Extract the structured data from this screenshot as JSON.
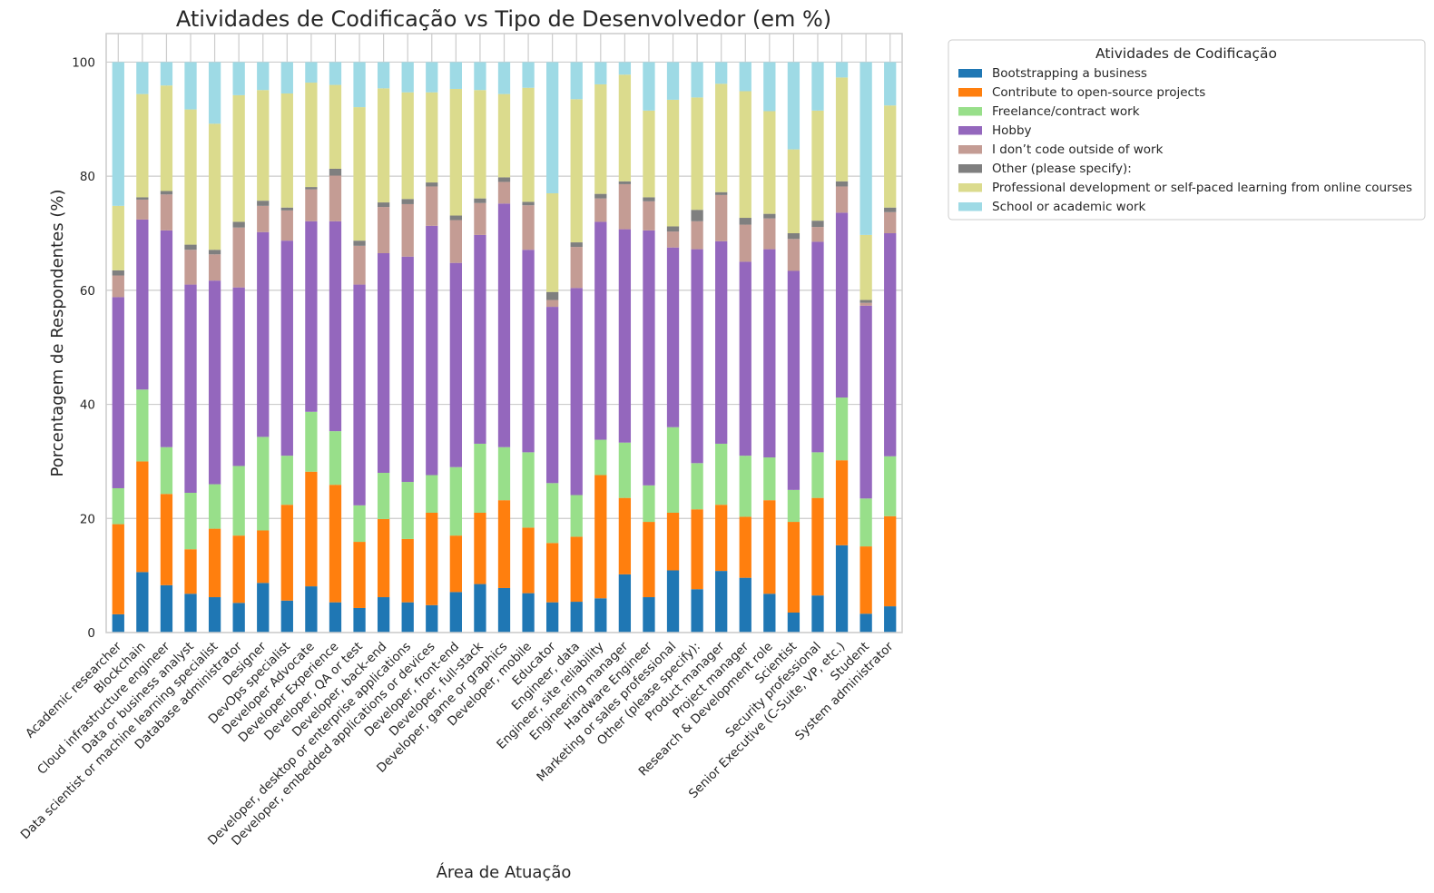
{
  "chart_data": {
    "type": "bar",
    "stacked": true,
    "title": "Atividades de Codificação vs Tipo de Desenvolvedor (em %)",
    "xlabel": "Área de Atuação",
    "ylabel": "Porcentagem de Respondentes (%)",
    "ylim": [
      0,
      105
    ],
    "yticks": [
      0,
      20,
      40,
      60,
      80,
      100
    ],
    "grid": true,
    "legend": {
      "title": "Atividades de Codificação",
      "placement": "outside-top-right"
    },
    "categories": [
      "Academic researcher",
      "Blockchain",
      "Cloud infrastructure engineer",
      "Data or business analyst",
      "Data scientist or machine learning specialist",
      "Database administrator",
      "Designer",
      "DevOps specialist",
      "Developer Advocate",
      "Developer Experience",
      "Developer, QA or test",
      "Developer, back-end",
      "Developer, desktop or enterprise applications",
      "Developer, embedded applications or devices",
      "Developer, front-end",
      "Developer, full-stack",
      "Developer, game or graphics",
      "Developer, mobile",
      "Educator",
      "Engineer, data",
      "Engineer, site reliability",
      "Engineering manager",
      "Hardware Engineer",
      "Marketing or sales professional",
      "Other (please specify):",
      "Product manager",
      "Project manager",
      "Research & Development role",
      "Scientist",
      "Security professional",
      "Senior Executive (C-Suite, VP, etc.)",
      "Student",
      "System administrator"
    ],
    "series": [
      {
        "name": "Bootstrapping a business",
        "color": "#1f77b4",
        "values": [
          3.2,
          10.6,
          8.3,
          6.8,
          6.2,
          5.2,
          8.7,
          5.6,
          8.1,
          5.3,
          4.3,
          6.2,
          5.3,
          4.8,
          7.1,
          8.5,
          7.8,
          6.9,
          5.3,
          5.4,
          6.0,
          10.2,
          6.2,
          10.9,
          7.6,
          10.8,
          9.6,
          6.8,
          3.5,
          6.5,
          15.3,
          3.3,
          4.6
        ]
      },
      {
        "name": "Contribute to open-source projects",
        "color": "#ff7f0e",
        "values": [
          15.8,
          19.4,
          16.0,
          7.8,
          12.0,
          11.8,
          9.2,
          16.8,
          20.1,
          20.6,
          11.6,
          13.7,
          11.1,
          16.2,
          9.9,
          12.5,
          15.4,
          11.5,
          10.4,
          11.4,
          21.6,
          13.4,
          13.2,
          10.1,
          14.0,
          11.6,
          10.7,
          16.4,
          15.9,
          17.1,
          14.9,
          11.8,
          15.8
        ]
      },
      {
        "name": "Freelance/contract work",
        "color": "#98df8a",
        "values": [
          6.3,
          12.6,
          8.2,
          9.9,
          7.8,
          12.2,
          16.4,
          8.6,
          10.5,
          9.4,
          6.4,
          8.1,
          10.0,
          6.6,
          12.0,
          12.1,
          9.3,
          13.2,
          10.5,
          7.3,
          6.2,
          9.7,
          6.4,
          15.0,
          8.1,
          10.7,
          10.7,
          7.5,
          5.6,
          8.0,
          11.0,
          8.4,
          10.5
        ]
      },
      {
        "name": "Hobby",
        "color": "#9467bd",
        "values": [
          33.5,
          29.8,
          38.0,
          36.5,
          35.7,
          31.3,
          35.9,
          37.7,
          33.4,
          36.8,
          38.7,
          38.5,
          39.5,
          43.7,
          35.8,
          36.6,
          42.7,
          35.5,
          30.9,
          36.3,
          38.2,
          37.4,
          44.7,
          31.5,
          37.5,
          35.5,
          34.0,
          36.5,
          38.4,
          36.9,
          32.4,
          33.8,
          39.1
        ]
      },
      {
        "name": "I don’t code outside of work",
        "color": "#c49c94",
        "values": [
          3.8,
          3.5,
          6.3,
          6.1,
          4.6,
          10.5,
          4.6,
          5.3,
          5.6,
          8.0,
          6.8,
          8.1,
          9.2,
          6.9,
          7.5,
          5.6,
          3.8,
          7.8,
          1.2,
          7.2,
          4.1,
          7.9,
          5.1,
          2.8,
          4.9,
          8.1,
          6.5,
          5.4,
          5.6,
          2.6,
          4.6,
          0.5,
          3.7
        ]
      },
      {
        "name": "Other (please specify):",
        "color": "#7f7f7f",
        "values": [
          0.9,
          0.4,
          0.6,
          0.9,
          0.8,
          1.0,
          0.9,
          0.5,
          0.4,
          1.2,
          0.9,
          0.8,
          0.9,
          0.7,
          0.8,
          0.8,
          0.8,
          0.6,
          1.4,
          0.8,
          0.8,
          0.5,
          0.7,
          0.9,
          2.0,
          0.5,
          1.2,
          0.8,
          1.0,
          1.1,
          0.9,
          0.5,
          0.8
        ]
      },
      {
        "name": "Professional development or self-paced learning from online courses",
        "color": "#dbdb8d",
        "values": [
          11.3,
          18.1,
          18.5,
          23.7,
          22.1,
          22.2,
          19.4,
          20.0,
          18.3,
          14.7,
          23.4,
          20.0,
          18.7,
          15.8,
          22.2,
          19.0,
          14.6,
          20.0,
          17.3,
          25.1,
          19.2,
          18.7,
          15.2,
          22.2,
          19.7,
          19.0,
          22.2,
          18.0,
          14.7,
          19.3,
          18.2,
          11.4,
          17.9
        ]
      },
      {
        "name": "School or academic work",
        "color": "#9edae5",
        "values": [
          25.2,
          5.6,
          4.1,
          8.3,
          10.8,
          5.8,
          4.9,
          5.5,
          3.6,
          4.0,
          7.9,
          4.6,
          5.3,
          5.3,
          4.7,
          4.9,
          5.6,
          4.5,
          23.0,
          6.5,
          3.9,
          2.2,
          8.5,
          6.6,
          6.2,
          3.8,
          5.1,
          8.6,
          15.3,
          8.5,
          2.7,
          30.3,
          7.6
        ]
      }
    ]
  }
}
